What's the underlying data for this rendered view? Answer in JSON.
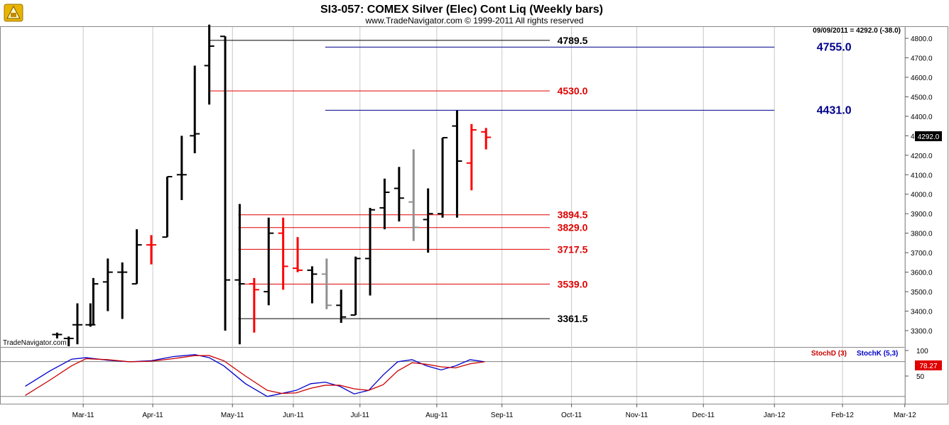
{
  "header": {
    "title": "SI3-057:  COMEX Silver (Elec) Cont Liq  (Weekly bars)",
    "copyright": "www.TradeNavigator.com © 1999-2011 All rights reserved",
    "quote": "09/09/2011 = 4292.0 (-38.0)",
    "watermark": "TradeNavigator.com",
    "last_price_label": "4292.0",
    "stoch_value_label": "78.27"
  },
  "colors": {
    "up": "#000000",
    "down": "#ff0000",
    "neutral": "#909090",
    "blue": "#00008b",
    "red": "#e00000",
    "stochK": "#0000cc",
    "stochD": "#cc0000"
  },
  "chart_data": {
    "type": "bar",
    "subtype": "ohlc",
    "price_ylim": [
      3200,
      4900
    ],
    "price_ticks": [
      "3300.0",
      "3400.0",
      "3500.0",
      "3600.0",
      "3700.0",
      "3800.0",
      "3900.0",
      "4000.0",
      "4100.0",
      "4200.0",
      "4300.0",
      "4400.0",
      "4500.0",
      "4600.0",
      "4700.0",
      "4800.0"
    ],
    "price_tick_values": [
      3300,
      3400,
      3500,
      3600,
      3700,
      3800,
      3900,
      4000,
      4100,
      4200,
      4300,
      4400,
      4500,
      4600,
      4700,
      4800
    ],
    "x_range": [
      0,
      65
    ],
    "month_ticks": [
      {
        "label": "Mar-11",
        "x": 5.3
      },
      {
        "label": "Apr-11",
        "x": 10.1
      },
      {
        "label": "May-11",
        "x": 15.6
      },
      {
        "label": "Jun-11",
        "x": 19.8
      },
      {
        "label": "Jul-11",
        "x": 24.4
      },
      {
        "label": "Aug-11",
        "x": 29.7
      },
      {
        "label": "Sep-11",
        "x": 34.2
      },
      {
        "label": "Oct-11",
        "x": 39.0
      },
      {
        "label": "Nov-11",
        "x": 43.5
      },
      {
        "label": "Dec-11",
        "x": 48.1
      },
      {
        "label": "Jan-12",
        "x": 53.0
      },
      {
        "label": "Feb-12",
        "x": 57.7
      },
      {
        "label": "Mar-12",
        "x": 62.0
      }
    ],
    "bars": [
      {
        "x": 3.5,
        "o": 3280,
        "h": 3290,
        "l": 3260,
        "c": 3280,
        "dir": "up"
      },
      {
        "x": 4.3,
        "o": 3260,
        "h": 3270,
        "l": 3220,
        "c": 3260,
        "dir": "up"
      },
      {
        "x": 4.9,
        "o": 3330,
        "h": 3440,
        "l": 3230,
        "c": 3330,
        "dir": "up"
      },
      {
        "x": 5.8,
        "o": 3330,
        "h": 3440,
        "l": 3320,
        "c": 3330,
        "dir": "up"
      },
      {
        "x": 6.0,
        "o": 3330,
        "h": 3570,
        "l": 3330,
        "c": 3540,
        "dir": "up"
      },
      {
        "x": 7.0,
        "o": 3550,
        "h": 3670,
        "l": 3400,
        "c": 3600,
        "dir": "up"
      },
      {
        "x": 8.0,
        "o": 3600,
        "h": 3650,
        "l": 3360,
        "c": 3600,
        "dir": "up"
      },
      {
        "x": 9.0,
        "o": 3540,
        "h": 3820,
        "l": 3540,
        "c": 3740,
        "dir": "up"
      },
      {
        "x": 10.0,
        "o": 3740,
        "h": 3790,
        "l": 3640,
        "c": 3740,
        "dir": "down"
      },
      {
        "x": 11.1,
        "o": 3780,
        "h": 4090,
        "l": 3780,
        "c": 4090,
        "dir": "up"
      },
      {
        "x": 12.1,
        "o": 4100,
        "h": 4300,
        "l": 3970,
        "c": 4100,
        "dir": "up"
      },
      {
        "x": 13.0,
        "o": 4300,
        "h": 4660,
        "l": 4210,
        "c": 4310,
        "dir": "up"
      },
      {
        "x": 14.0,
        "o": 4660,
        "h": 4870,
        "l": 4460,
        "c": 4760,
        "dir": "up"
      },
      {
        "x": 15.1,
        "o": 4810,
        "h": 4810,
        "l": 3300,
        "c": 3560,
        "dir": "up"
      },
      {
        "x": 16.1,
        "o": 3560,
        "h": 3950,
        "l": 3230,
        "c": 3540,
        "dir": "up"
      },
      {
        "x": 17.1,
        "o": 3540,
        "h": 3570,
        "l": 3290,
        "c": 3510,
        "dir": "down"
      },
      {
        "x": 18.1,
        "o": 3500,
        "h": 3880,
        "l": 3430,
        "c": 3800,
        "dir": "up"
      },
      {
        "x": 19.1,
        "o": 3800,
        "h": 3880,
        "l": 3510,
        "c": 3630,
        "dir": "down"
      },
      {
        "x": 20.1,
        "o": 3620,
        "h": 3780,
        "l": 3600,
        "c": 3610,
        "dir": "down"
      },
      {
        "x": 21.1,
        "o": 3610,
        "h": 3630,
        "l": 3440,
        "c": 3590,
        "dir": "up"
      },
      {
        "x": 22.1,
        "o": 3590,
        "h": 3670,
        "l": 3410,
        "c": 3430,
        "dir": "neutral"
      },
      {
        "x": 23.1,
        "o": 3430,
        "h": 3510,
        "l": 3340,
        "c": 3370,
        "dir": "up"
      },
      {
        "x": 24.1,
        "o": 3380,
        "h": 3680,
        "l": 3380,
        "c": 3670,
        "dir": "up"
      },
      {
        "x": 25.1,
        "o": 3670,
        "h": 3930,
        "l": 3480,
        "c": 3920,
        "dir": "up"
      },
      {
        "x": 26.1,
        "o": 3930,
        "h": 4080,
        "l": 3820,
        "c": 4010,
        "dir": "up"
      },
      {
        "x": 27.1,
        "o": 4030,
        "h": 4140,
        "l": 3860,
        "c": 3980,
        "dir": "up"
      },
      {
        "x": 28.1,
        "o": 3960,
        "h": 4230,
        "l": 3760,
        "c": 3830,
        "dir": "neutral"
      },
      {
        "x": 29.1,
        "o": 3870,
        "h": 4030,
        "l": 3700,
        "c": 3900,
        "dir": "up"
      },
      {
        "x": 30.1,
        "o": 3900,
        "h": 4290,
        "l": 3880,
        "c": 4290,
        "dir": "up"
      },
      {
        "x": 31.1,
        "o": 4350,
        "h": 4430,
        "l": 3880,
        "c": 4170,
        "dir": "up"
      },
      {
        "x": 32.1,
        "o": 4160,
        "h": 4360,
        "l": 4020,
        "c": 4330,
        "dir": "down"
      },
      {
        "x": 33.1,
        "o": 4320,
        "h": 4340,
        "l": 4230,
        "c": 4292,
        "dir": "down"
      }
    ],
    "levels": [
      {
        "value": 4789.5,
        "label": "4789.5",
        "color": "#000000",
        "x_start": 14.0,
        "x_end": 37.5,
        "size": "normal"
      },
      {
        "value": 4755.0,
        "label": "4755.0",
        "color": "#00008b",
        "x_start": 22.0,
        "x_end": 53.0,
        "size": "big"
      },
      {
        "value": 4530.0,
        "label": "4530.0",
        "color": "#e00000",
        "x_start": 14.0,
        "x_end": 37.5,
        "size": "normal"
      },
      {
        "value": 4431.0,
        "label": "4431.0",
        "color": "#00008b",
        "x_start": 22.0,
        "x_end": 53.0,
        "size": "big"
      },
      {
        "value": 3894.5,
        "label": "3894.5",
        "color": "#e00000",
        "x_start": 16.0,
        "x_end": 37.5,
        "size": "normal"
      },
      {
        "value": 3829.0,
        "label": "3829.0",
        "color": "#e00000",
        "x_start": 16.0,
        "x_end": 37.5,
        "size": "normal"
      },
      {
        "value": 3717.5,
        "label": "3717.5",
        "color": "#e00000",
        "x_start": 16.0,
        "x_end": 37.5,
        "size": "normal"
      },
      {
        "value": 3539.0,
        "label": "3539.0",
        "color": "#e00000",
        "x_start": 16.0,
        "x_end": 37.5,
        "size": "normal"
      },
      {
        "value": 3361.5,
        "label": "3361.5",
        "color": "#000000",
        "x_start": 16.0,
        "x_end": 37.5,
        "size": "normal"
      }
    ],
    "stoch": {
      "ylim": [
        0,
        100
      ],
      "ticks": [
        "100",
        "50"
      ],
      "tick_values": [
        100,
        50
      ],
      "reference_line": 78.27,
      "lower_line": 10,
      "legend": [
        {
          "name": "StochD (3)",
          "color": "#cc0000"
        },
        {
          "name": "StochK (5,3)",
          "color": "#0000cc"
        }
      ],
      "series": [
        {
          "name": "StochK (5,3)",
          "color": "#0000cc",
          "x": [
            1.3,
            3.0,
            4.5,
            5.5,
            7.0,
            8.5,
            10.0,
            11.5,
            13.0,
            14.0,
            15.0,
            16.5,
            18.0,
            19.0,
            20.0,
            21.0,
            22.0,
            23.0,
            24.0,
            25.0,
            26.0,
            27.0,
            28.0,
            29.0,
            30.0,
            31.0,
            32.0,
            33.0
          ],
          "y": [
            30,
            60,
            83,
            86,
            81,
            78,
            80,
            88,
            92,
            86,
            70,
            35,
            10,
            16,
            22,
            35,
            38,
            30,
            15,
            22,
            52,
            78,
            82,
            70,
            62,
            70,
            82,
            78
          ]
        },
        {
          "name": "StochD (3)",
          "color": "#cc0000",
          "x": [
            1.3,
            3.0,
            4.5,
            5.5,
            7.0,
            8.5,
            10.0,
            11.5,
            13.0,
            14.0,
            15.0,
            16.5,
            18.0,
            19.0,
            20.0,
            21.0,
            22.0,
            23.0,
            24.0,
            25.0,
            26.0,
            27.0,
            28.0,
            29.0,
            30.0,
            31.0,
            32.0,
            33.0
          ],
          "y": [
            12,
            42,
            70,
            84,
            82,
            78,
            79,
            84,
            90,
            90,
            80,
            50,
            22,
            16,
            17,
            26,
            32,
            32,
            25,
            22,
            33,
            60,
            76,
            73,
            68,
            66,
            74,
            78
          ]
        }
      ]
    }
  }
}
